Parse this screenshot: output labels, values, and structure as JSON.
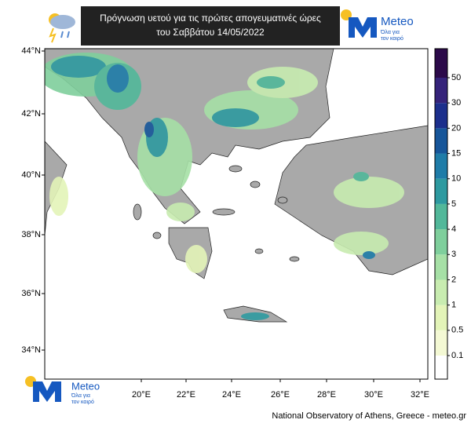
{
  "header": {
    "title_lines": [
      "Πρόγνωση υετού για τις πρώτες απογευματινές ώρες",
      "του Σαββάτου 14/05/2022"
    ]
  },
  "logo": {
    "name": "Meteo",
    "slogan_lines": [
      "Όλα για",
      "τον καιρό"
    ]
  },
  "map": {
    "lat_labels": [
      "44°N",
      "42°N",
      "40°N",
      "38°N",
      "36°N",
      "34°N"
    ],
    "lon_labels": [
      "20°E",
      "22°E",
      "24°E",
      "26°E",
      "28°E",
      "30°E",
      "32°E"
    ]
  },
  "colorbar": {
    "levels": [
      0.1,
      0.5,
      1,
      2,
      3,
      4,
      5,
      10,
      15,
      20,
      30,
      50
    ],
    "colors": [
      "#ffffff",
      "#f4f9d4",
      "#e3f4b8",
      "#c8ecb0",
      "#a6e0a6",
      "#7fcf9c",
      "#52b89a",
      "#2e9aa0",
      "#1f7ca8",
      "#17569a",
      "#1c2f8c",
      "#35237a",
      "#2c0a4a"
    ]
  },
  "footer": {
    "credit": "National Observatory of Athens, Greece - meteo.gr"
  }
}
